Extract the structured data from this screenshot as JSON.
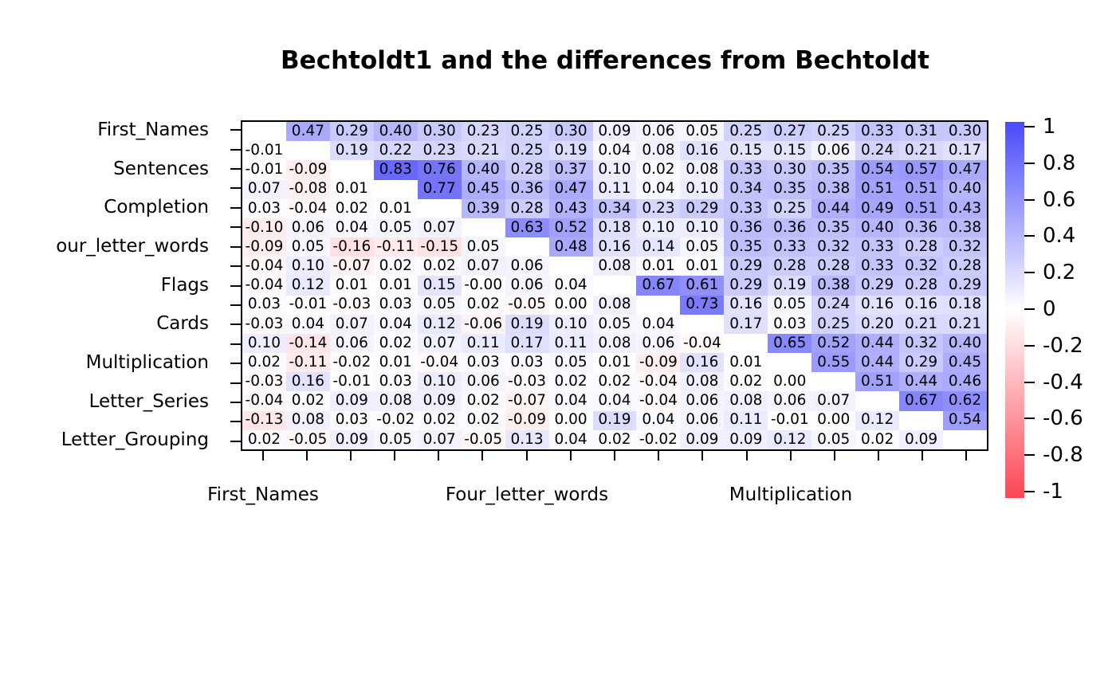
{
  "title": "Bechtoldt1 and the differences from Bechtoldt",
  "y_axis": {
    "labels": [
      "First_Names",
      "Sentences",
      "Completion",
      "our_letter_words",
      "Flags",
      "Cards",
      "Multiplication",
      "Letter_Series",
      "Letter_Grouping"
    ]
  },
  "x_axis": {
    "labels": [
      "First_Names",
      "Four_letter_words",
      "Multiplication"
    ]
  },
  "colorbar": {
    "tick_labels": [
      "1",
      "0.8",
      "0.6",
      "0.4",
      "0.2",
      "0",
      "-0.2",
      "-0.4",
      "-0.6",
      "-0.8",
      "-1"
    ],
    "top_color": "#4949fb",
    "mid_color": "#ffffff",
    "bottom_color": "#fb4653",
    "range": [
      1,
      -1
    ]
  },
  "chart_data": {
    "type": "heatmap",
    "title": "Bechtoldt1 and the differences from Bechtoldt",
    "n": 17,
    "row_labels_shown": [
      "First_Names",
      "Sentences",
      "Completion",
      "our_letter_words",
      "Flags",
      "Cards",
      "Multiplication",
      "Letter_Series",
      "Letter_Grouping"
    ],
    "col_labels_shown": [
      "First_Names",
      "Four_letter_words",
      "Multiplication"
    ],
    "value_range": [
      -1,
      1
    ],
    "matrix": [
      [
        "",
        "0.47",
        "0.29",
        "0.40",
        "0.30",
        "0.23",
        "0.25",
        "0.30",
        "0.09",
        "0.06",
        "0.05",
        "0.25",
        "0.27",
        "0.25",
        "0.33",
        "0.31",
        "0.30"
      ],
      [
        "-0.01",
        "",
        "0.19",
        "0.22",
        "0.23",
        "0.21",
        "0.25",
        "0.19",
        "0.04",
        "0.08",
        "0.16",
        "0.15",
        "0.15",
        "0.06",
        "0.24",
        "0.21",
        "0.17"
      ],
      [
        "-0.01",
        "-0.09",
        "",
        "0.83",
        "0.76",
        "0.40",
        "0.28",
        "0.37",
        "0.10",
        "0.02",
        "0.08",
        "0.33",
        "0.30",
        "0.35",
        "0.54",
        "0.57",
        "0.47"
      ],
      [
        "0.07",
        "-0.08",
        "0.01",
        "",
        "0.77",
        "0.45",
        "0.36",
        "0.47",
        "0.11",
        "0.04",
        "0.10",
        "0.34",
        "0.35",
        "0.38",
        "0.51",
        "0.51",
        "0.40"
      ],
      [
        "0.03",
        "-0.04",
        "0.02",
        "0.01",
        "",
        "0.39",
        "0.28",
        "0.43",
        "0.34",
        "0.23",
        "0.29",
        "0.33",
        "0.25",
        "0.44",
        "0.49",
        "0.51",
        "0.43"
      ],
      [
        "-0.10",
        "0.06",
        "0.04",
        "0.05",
        "0.07",
        "",
        "0.63",
        "0.52",
        "0.18",
        "0.10",
        "0.10",
        "0.36",
        "0.36",
        "0.35",
        "0.40",
        "0.36",
        "0.38"
      ],
      [
        "-0.09",
        "0.05",
        "-0.16",
        "-0.11",
        "-0.15",
        "0.05",
        "",
        "0.48",
        "0.16",
        "0.14",
        "0.05",
        "0.35",
        "0.33",
        "0.32",
        "0.33",
        "0.28",
        "0.32"
      ],
      [
        "-0.04",
        "0.10",
        "-0.07",
        "0.02",
        "0.02",
        "0.07",
        "0.06",
        "",
        "0.08",
        "0.01",
        "0.01",
        "0.29",
        "0.28",
        "0.28",
        "0.33",
        "0.32",
        "0.28"
      ],
      [
        "-0.04",
        "0.12",
        "0.01",
        "0.01",
        "0.15",
        "-0.00",
        "0.06",
        "0.04",
        "",
        "0.67",
        "0.61",
        "0.29",
        "0.19",
        "0.38",
        "0.29",
        "0.28",
        "0.29"
      ],
      [
        "0.03",
        "-0.01",
        "-0.03",
        "0.03",
        "0.05",
        "0.02",
        "-0.05",
        "0.00",
        "0.08",
        "",
        "0.73",
        "0.16",
        "0.05",
        "0.24",
        "0.16",
        "0.16",
        "0.18"
      ],
      [
        "-0.03",
        "0.04",
        "0.07",
        "0.04",
        "0.12",
        "-0.06",
        "0.19",
        "0.10",
        "0.05",
        "0.04",
        "",
        "0.17",
        "0.03",
        "0.25",
        "0.20",
        "0.21",
        "0.21"
      ],
      [
        "0.10",
        "-0.14",
        "0.06",
        "0.02",
        "0.07",
        "0.11",
        "0.17",
        "0.11",
        "0.08",
        "0.06",
        "-0.04",
        "",
        "0.65",
        "0.52",
        "0.44",
        "0.32",
        "0.40"
      ],
      [
        "0.02",
        "-0.11",
        "-0.02",
        "0.01",
        "-0.04",
        "0.03",
        "0.03",
        "0.05",
        "0.01",
        "-0.09",
        "0.16",
        "0.01",
        "",
        "0.55",
        "0.44",
        "0.29",
        "0.45"
      ],
      [
        "-0.03",
        "0.16",
        "-0.01",
        "0.03",
        "0.10",
        "0.06",
        "-0.03",
        "0.02",
        "0.02",
        "-0.04",
        "0.08",
        "0.02",
        "0.00",
        "",
        "0.51",
        "0.44",
        "0.46"
      ],
      [
        "-0.04",
        "0.02",
        "0.09",
        "0.08",
        "0.09",
        "0.02",
        "-0.07",
        "0.04",
        "0.04",
        "-0.04",
        "0.06",
        "0.08",
        "0.06",
        "0.07",
        "",
        "0.67",
        "0.62"
      ],
      [
        "-0.13",
        "0.08",
        "0.03",
        "-0.02",
        "0.02",
        "0.02",
        "-0.09",
        "0.00",
        "0.19",
        "0.04",
        "0.06",
        "0.11",
        "-0.01",
        "0.00",
        "0.12",
        "",
        "0.54"
      ],
      [
        "0.02",
        "-0.05",
        "0.09",
        "0.05",
        "0.07",
        "-0.05",
        "0.13",
        "0.04",
        "0.02",
        "-0.02",
        "0.09",
        "0.09",
        "0.12",
        "0.05",
        "0.02",
        "0.09",
        ""
      ]
    ]
  }
}
